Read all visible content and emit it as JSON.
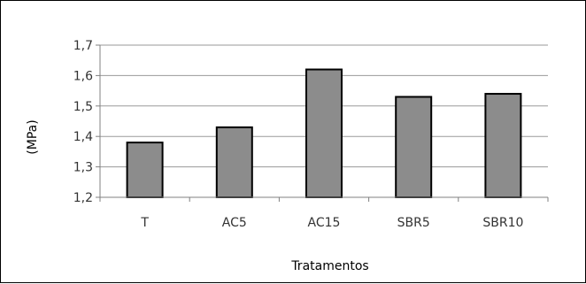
{
  "chart_data": {
    "type": "bar",
    "categories": [
      "T",
      "AC5",
      "AC15",
      "SBR5",
      "SBR10"
    ],
    "values": [
      1.38,
      1.43,
      1.62,
      1.53,
      1.54
    ],
    "xlabel": "Tratamentos",
    "ylabel": "(MPa)",
    "ylim": [
      1.2,
      1.7
    ],
    "yticks": [
      "1,2",
      "1,3",
      "1,4",
      "1,5",
      "1,6",
      "1,7"
    ],
    "grid": true,
    "legend": "none",
    "colors": {
      "bar_fill": "#8c8c8c",
      "bar_stroke": "#000000",
      "grid": "#9a9a9a",
      "axis": "#808080"
    }
  }
}
